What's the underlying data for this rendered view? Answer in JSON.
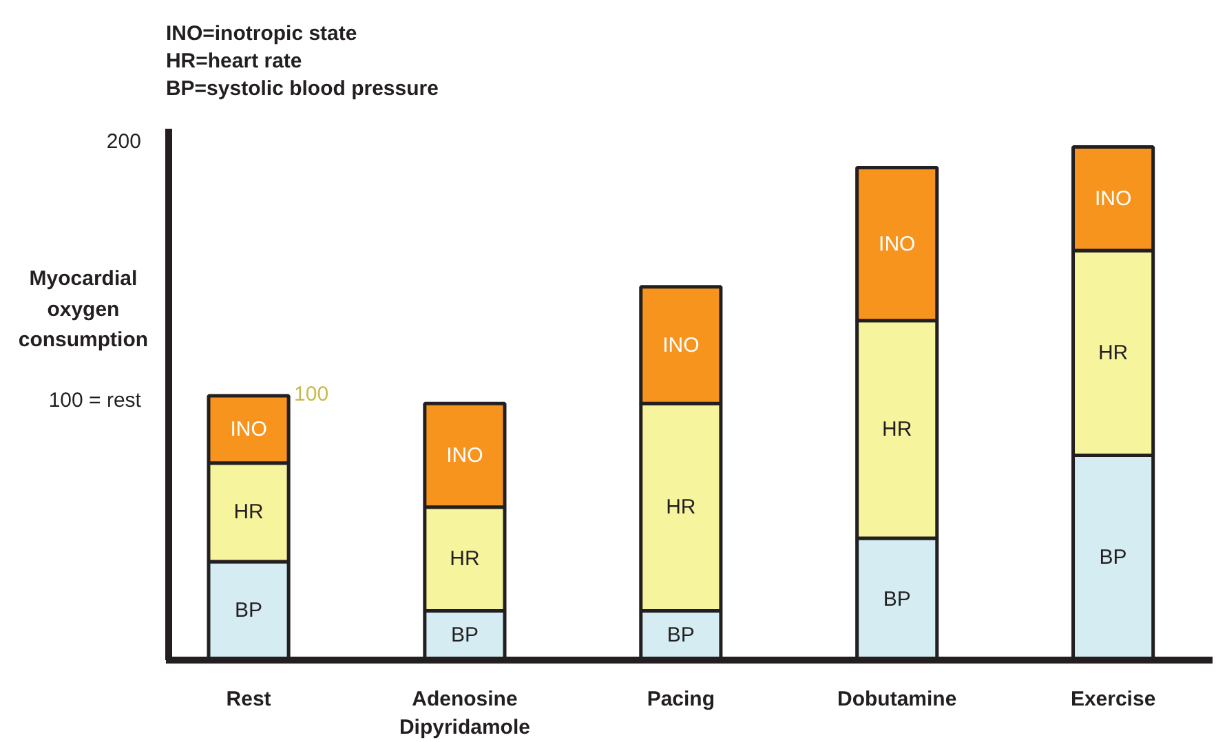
{
  "chart_data": {
    "type": "bar",
    "stacked": true,
    "categories": [
      "Rest",
      "Adenosine\nDipyridamole",
      "Pacing",
      "Dobutamine",
      "Exercise"
    ],
    "series": [
      {
        "name": "BP",
        "color": "#d4ecf2",
        "values": [
          38,
          19,
          19,
          47,
          79
        ]
      },
      {
        "name": "HR",
        "color": "#f7f49e",
        "values": [
          38,
          40,
          80,
          84,
          79
        ]
      },
      {
        "name": "INO",
        "color": "#f7941d",
        "values": [
          26,
          40,
          45,
          59,
          40
        ]
      }
    ],
    "ylabel": "Myocardial oxygen consumption",
    "ylim": [
      0,
      205
    ],
    "yticks": [
      {
        "value": 100,
        "label": "100 = rest"
      },
      200
    ],
    "grid": false,
    "legend": false,
    "annotations": [
      "INO=inotropic state",
      "HR=heart rate",
      "BP=systolic blood pressure",
      {
        "text": "100",
        "x": "Rest",
        "y": 100
      }
    ]
  }
}
